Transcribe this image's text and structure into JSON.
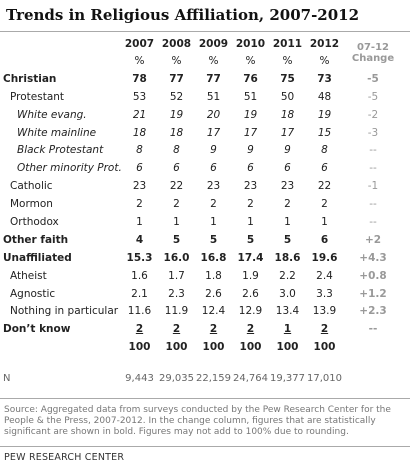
{
  "title": "Trends in Religious Affiliation, 2007-2012",
  "columns": [
    "2007",
    "2008",
    "2009",
    "2010",
    "2011",
    "2012"
  ],
  "change_header": [
    "07-12",
    "Change"
  ],
  "unit": "%",
  "rows": [
    {
      "label": "Christian",
      "values": [
        "78",
        "77",
        "77",
        "76",
        "75",
        "73"
      ],
      "change": "-5",
      "bold": true,
      "indent": 0
    },
    {
      "label": "Protestant",
      "values": [
        "53",
        "52",
        "51",
        "51",
        "50",
        "48"
      ],
      "change": "-5",
      "indent": 1
    },
    {
      "label": "White evang.",
      "values": [
        "21",
        "19",
        "20",
        "19",
        "18",
        "19"
      ],
      "change": "-2",
      "indent": 2,
      "italic": true
    },
    {
      "label": "White mainline",
      "values": [
        "18",
        "18",
        "17",
        "17",
        "17",
        "15"
      ],
      "change": "-3",
      "indent": 2,
      "italic": true
    },
    {
      "label": "Black Protestant",
      "values": [
        "8",
        "8",
        "9",
        "9",
        "9",
        "8"
      ],
      "change": "--",
      "indent": 2,
      "italic": true
    },
    {
      "label": "Other minority Prot.",
      "values": [
        "6",
        "6",
        "6",
        "6",
        "6",
        "6"
      ],
      "change": "--",
      "indent": 2,
      "italic": true
    },
    {
      "label": "Catholic",
      "values": [
        "23",
        "22",
        "23",
        "23",
        "23",
        "22"
      ],
      "change": "-1",
      "indent": 1
    },
    {
      "label": "Mormon",
      "values": [
        "2",
        "2",
        "2",
        "2",
        "2",
        "2"
      ],
      "change": "--",
      "indent": 1
    },
    {
      "label": "Orthodox",
      "values": [
        "1",
        "1",
        "1",
        "1",
        "1",
        "1"
      ],
      "change": "--",
      "indent": 1
    },
    {
      "label": "Other faith",
      "values": [
        "4",
        "5",
        "5",
        "5",
        "5",
        "6"
      ],
      "change": "+2",
      "bold": true,
      "indent": 0
    },
    {
      "label": "Unaffiliated",
      "values": [
        "15.3",
        "16.0",
        "16.8",
        "17.4",
        "18.6",
        "19.6"
      ],
      "change": "+4.3",
      "bold": true,
      "indent": 0
    },
    {
      "label": "Atheist",
      "values": [
        "1.6",
        "1.7",
        "1.8",
        "1.9",
        "2.2",
        "2.4"
      ],
      "change": "+0.8",
      "change_bold": true,
      "indent": 1
    },
    {
      "label": "Agnostic",
      "values": [
        "2.1",
        "2.3",
        "2.6",
        "2.6",
        "3.0",
        "3.3"
      ],
      "change": "+1.2",
      "change_bold": true,
      "indent": 1
    },
    {
      "label": "Nothing in particular",
      "values": [
        "11.6",
        "11.9",
        "12.4",
        "12.9",
        "13.4",
        "13.9"
      ],
      "change": "+2.3",
      "change_bold": true,
      "indent": 1
    },
    {
      "label": "Don’t know",
      "values": [
        "2",
        "2",
        "2",
        "2",
        "1",
        "2"
      ],
      "change": "--",
      "bold": true,
      "underline": true,
      "indent": 0
    },
    {
      "label": null,
      "values": [
        "100",
        "100",
        "100",
        "100",
        "100",
        "100"
      ],
      "bold": true,
      "indent": 0
    }
  ],
  "n_row": {
    "label": "N",
    "values": [
      "9,443",
      "29,035",
      "22,159",
      "24,764",
      "19,377",
      "17,010"
    ]
  },
  "source": "Source: Aggregated data from surveys conducted by the Pew Research Center for the People & the Press, 2007-2012. In the change column, figures that are statistically significant are shown in bold. Figures may not add to 100% due to rounding.",
  "footer": "PEW RESEARCH CENTER"
}
